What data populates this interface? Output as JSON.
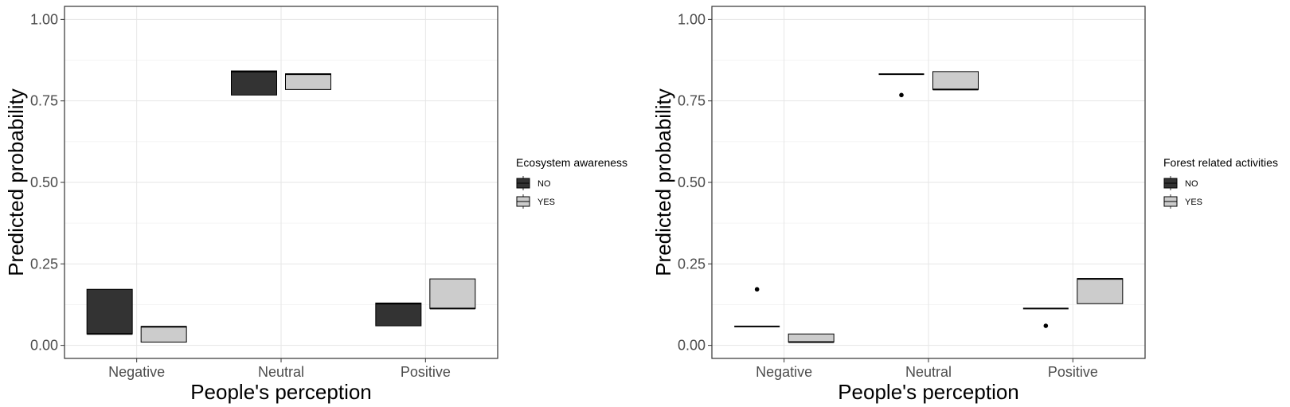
{
  "chart_data": [
    {
      "type": "boxplot",
      "categories": [
        "Negative",
        "Neutral",
        "Positive"
      ],
      "xlabel": "People's perception",
      "ylabel": "Predicted probability",
      "ylim": [
        -0.04,
        1.04
      ],
      "yticks": [
        "0.00",
        "0.25",
        "0.50",
        "0.75",
        "1.00"
      ],
      "grid": true,
      "legend": {
        "title": "Ecosystem awareness",
        "position": "right"
      },
      "series": [
        {
          "name": "NO",
          "color": "#333333",
          "boxes": [
            {
              "category": "Negative",
              "q1": 0.035,
              "median": 0.035,
              "q3": 0.172,
              "outliers": []
            },
            {
              "category": "Neutral",
              "q1": 0.768,
              "median": 0.84,
              "q3": 0.842,
              "outliers": []
            },
            {
              "category": "Positive",
              "q1": 0.06,
              "median": 0.128,
              "q3": 0.13,
              "outliers": []
            }
          ]
        },
        {
          "name": "YES",
          "color": "#cccccc",
          "boxes": [
            {
              "category": "Negative",
              "q1": 0.01,
              "median": 0.057,
              "q3": 0.058,
              "outliers": []
            },
            {
              "category": "Neutral",
              "q1": 0.785,
              "median": 0.832,
              "q3": 0.833,
              "outliers": []
            },
            {
              "category": "Positive",
              "q1": 0.113,
              "median": 0.113,
              "q3": 0.204,
              "outliers": []
            }
          ]
        }
      ]
    },
    {
      "type": "boxplot",
      "categories": [
        "Negative",
        "Neutral",
        "Positive"
      ],
      "xlabel": "People's perception",
      "ylabel": "Predicted probability",
      "ylim": [
        -0.04,
        1.04
      ],
      "yticks": [
        "0.00",
        "0.25",
        "0.50",
        "0.75",
        "1.00"
      ],
      "grid": true,
      "legend": {
        "title": "Forest related activities",
        "position": "right"
      },
      "series": [
        {
          "name": "NO",
          "color": "#333333",
          "boxes": [
            {
              "category": "Negative",
              "q1": 0.058,
              "median": 0.058,
              "q3": 0.058,
              "outliers": [
                0.172
              ]
            },
            {
              "category": "Neutral",
              "q1": 0.832,
              "median": 0.832,
              "q3": 0.832,
              "outliers": [
                0.768
              ]
            },
            {
              "category": "Positive",
              "q1": 0.113,
              "median": 0.113,
              "q3": 0.113,
              "outliers": [
                0.06
              ]
            }
          ]
        },
        {
          "name": "YES",
          "color": "#cccccc",
          "boxes": [
            {
              "category": "Negative",
              "q1": 0.01,
              "median": 0.01,
              "q3": 0.035,
              "outliers": []
            },
            {
              "category": "Neutral",
              "q1": 0.785,
              "median": 0.785,
              "q3": 0.84,
              "outliers": []
            },
            {
              "category": "Positive",
              "q1": 0.128,
              "median": 0.204,
              "q3": 0.205,
              "outliers": []
            }
          ]
        }
      ]
    }
  ]
}
